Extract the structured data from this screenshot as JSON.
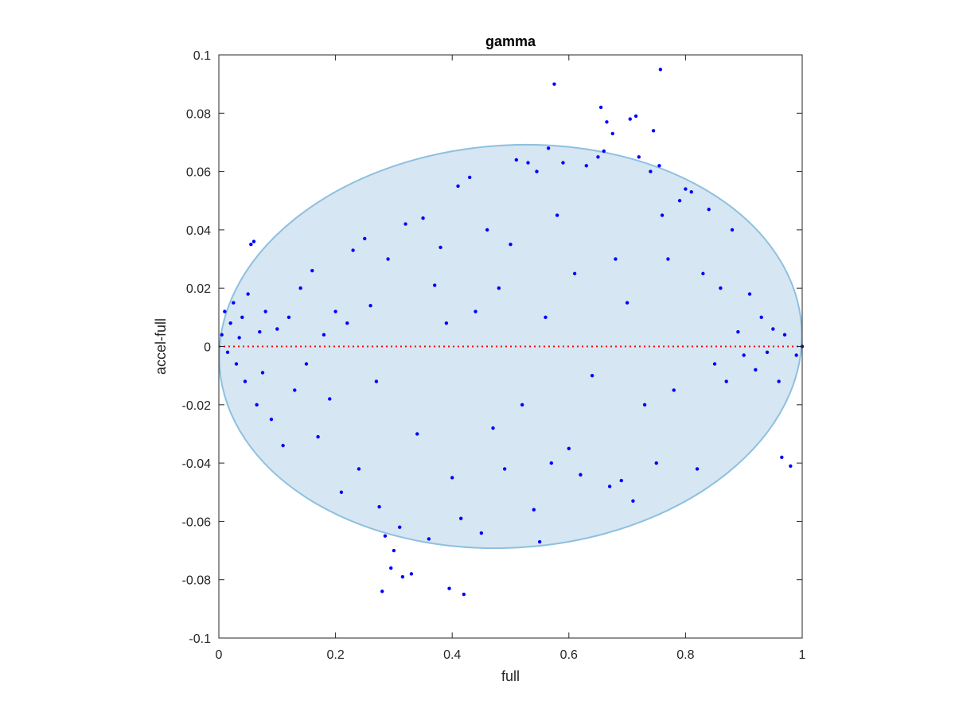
{
  "chart_data": {
    "type": "scatter",
    "title": "gamma",
    "xlabel": "full",
    "ylabel": "accel-full",
    "xlim": [
      0,
      1
    ],
    "ylim": [
      -0.1,
      0.1
    ],
    "xticks": [
      0,
      0.2,
      0.4,
      0.6,
      0.8,
      1
    ],
    "xtick_labels": [
      "0",
      "0.2",
      "0.4",
      "0.6",
      "0.8",
      "1"
    ],
    "yticks": [
      -0.1,
      -0.08,
      -0.06,
      -0.04,
      -0.02,
      0,
      0.02,
      0.04,
      0.06,
      0.08,
      0.1
    ],
    "ytick_labels": [
      "-0.1",
      "-0.08",
      "-0.06",
      "-0.04",
      "-0.02",
      "0",
      "0.02",
      "0.04",
      "0.06",
      "0.08",
      "0.1"
    ],
    "grid": false,
    "colors": {
      "points": "#0000ff",
      "ellipse_fill": "#d6e6f2",
      "ellipse_edge": "#8ec0df",
      "zero_line": "#ff0000",
      "axes": "#262626"
    },
    "reference_line": {
      "y": 0,
      "style": "dotted",
      "x_range": [
        0,
        1
      ]
    },
    "ellipse": {
      "center": [
        0.5,
        0
      ],
      "x_range": [
        0,
        1
      ],
      "y_range": [
        -0.069,
        0.069
      ],
      "tilt": "slightly rotated, peak near x=0.43"
    },
    "series": [
      {
        "points": [
          [
            0.005,
            0.004
          ],
          [
            0.01,
            0.012
          ],
          [
            0.015,
            -0.002
          ],
          [
            0.02,
            0.008
          ],
          [
            0.025,
            0.015
          ],
          [
            0.03,
            -0.006
          ],
          [
            0.035,
            0.003
          ],
          [
            0.04,
            0.01
          ],
          [
            0.045,
            -0.012
          ],
          [
            0.05,
            0.018
          ],
          [
            0.055,
            0.035
          ],
          [
            0.06,
            0.036
          ],
          [
            0.065,
            -0.02
          ],
          [
            0.07,
            0.005
          ],
          [
            0.075,
            -0.009
          ],
          [
            0.08,
            0.012
          ],
          [
            0.09,
            -0.025
          ],
          [
            0.1,
            0.006
          ],
          [
            0.11,
            -0.034
          ],
          [
            0.12,
            0.01
          ],
          [
            0.13,
            -0.015
          ],
          [
            0.14,
            0.02
          ],
          [
            0.15,
            -0.006
          ],
          [
            0.16,
            0.026
          ],
          [
            0.17,
            -0.031
          ],
          [
            0.18,
            0.004
          ],
          [
            0.19,
            -0.018
          ],
          [
            0.2,
            0.012
          ],
          [
            0.21,
            -0.05
          ],
          [
            0.22,
            0.008
          ],
          [
            0.23,
            0.033
          ],
          [
            0.24,
            -0.042
          ],
          [
            0.25,
            0.037
          ],
          [
            0.26,
            0.014
          ],
          [
            0.27,
            -0.012
          ],
          [
            0.275,
            -0.055
          ],
          [
            0.28,
            -0.084
          ],
          [
            0.285,
            -0.065
          ],
          [
            0.29,
            0.03
          ],
          [
            0.295,
            -0.076
          ],
          [
            0.3,
            -0.07
          ],
          [
            0.31,
            -0.062
          ],
          [
            0.315,
            -0.079
          ],
          [
            0.32,
            0.042
          ],
          [
            0.33,
            -0.078
          ],
          [
            0.34,
            -0.03
          ],
          [
            0.35,
            0.044
          ],
          [
            0.36,
            -0.066
          ],
          [
            0.37,
            0.021
          ],
          [
            0.38,
            0.034
          ],
          [
            0.39,
            0.008
          ],
          [
            0.395,
            -0.083
          ],
          [
            0.4,
            -0.045
          ],
          [
            0.41,
            0.055
          ],
          [
            0.415,
            -0.059
          ],
          [
            0.42,
            -0.085
          ],
          [
            0.43,
            0.058
          ],
          [
            0.44,
            0.012
          ],
          [
            0.45,
            -0.064
          ],
          [
            0.46,
            0.04
          ],
          [
            0.47,
            -0.028
          ],
          [
            0.48,
            0.02
          ],
          [
            0.49,
            -0.042
          ],
          [
            0.5,
            0.035
          ],
          [
            0.51,
            0.064
          ],
          [
            0.52,
            -0.02
          ],
          [
            0.53,
            0.063
          ],
          [
            0.54,
            -0.056
          ],
          [
            0.545,
            0.06
          ],
          [
            0.55,
            -0.067
          ],
          [
            0.56,
            0.01
          ],
          [
            0.565,
            0.068
          ],
          [
            0.57,
            -0.04
          ],
          [
            0.575,
            0.09
          ],
          [
            0.58,
            0.045
          ],
          [
            0.59,
            0.063
          ],
          [
            0.6,
            -0.035
          ],
          [
            0.61,
            0.025
          ],
          [
            0.62,
            -0.044
          ],
          [
            0.63,
            0.062
          ],
          [
            0.64,
            -0.01
          ],
          [
            0.65,
            0.065
          ],
          [
            0.655,
            0.082
          ],
          [
            0.66,
            0.067
          ],
          [
            0.665,
            0.077
          ],
          [
            0.67,
            -0.048
          ],
          [
            0.675,
            0.073
          ],
          [
            0.68,
            0.03
          ],
          [
            0.69,
            -0.046
          ],
          [
            0.7,
            0.015
          ],
          [
            0.705,
            0.078
          ],
          [
            0.71,
            -0.053
          ],
          [
            0.715,
            0.079
          ],
          [
            0.72,
            0.065
          ],
          [
            0.73,
            -0.02
          ],
          [
            0.74,
            0.06
          ],
          [
            0.745,
            0.074
          ],
          [
            0.75,
            -0.04
          ],
          [
            0.755,
            0.062
          ],
          [
            0.757,
            0.095
          ],
          [
            0.76,
            0.045
          ],
          [
            0.77,
            0.03
          ],
          [
            0.78,
            -0.015
          ],
          [
            0.79,
            0.05
          ],
          [
            0.8,
            0.054
          ],
          [
            0.81,
            0.053
          ],
          [
            0.82,
            -0.042
          ],
          [
            0.83,
            0.025
          ],
          [
            0.84,
            0.047
          ],
          [
            0.85,
            -0.006
          ],
          [
            0.86,
            0.02
          ],
          [
            0.87,
            -0.012
          ],
          [
            0.88,
            0.04
          ],
          [
            0.89,
            0.005
          ],
          [
            0.9,
            -0.003
          ],
          [
            0.91,
            0.018
          ],
          [
            0.92,
            -0.008
          ],
          [
            0.93,
            0.01
          ],
          [
            0.94,
            -0.002
          ],
          [
            0.95,
            0.006
          ],
          [
            0.96,
            -0.012
          ],
          [
            0.965,
            -0.038
          ],
          [
            0.97,
            0.004
          ],
          [
            0.98,
            -0.041
          ],
          [
            0.99,
            -0.003
          ],
          [
            1.0,
            0.0
          ]
        ]
      }
    ]
  }
}
